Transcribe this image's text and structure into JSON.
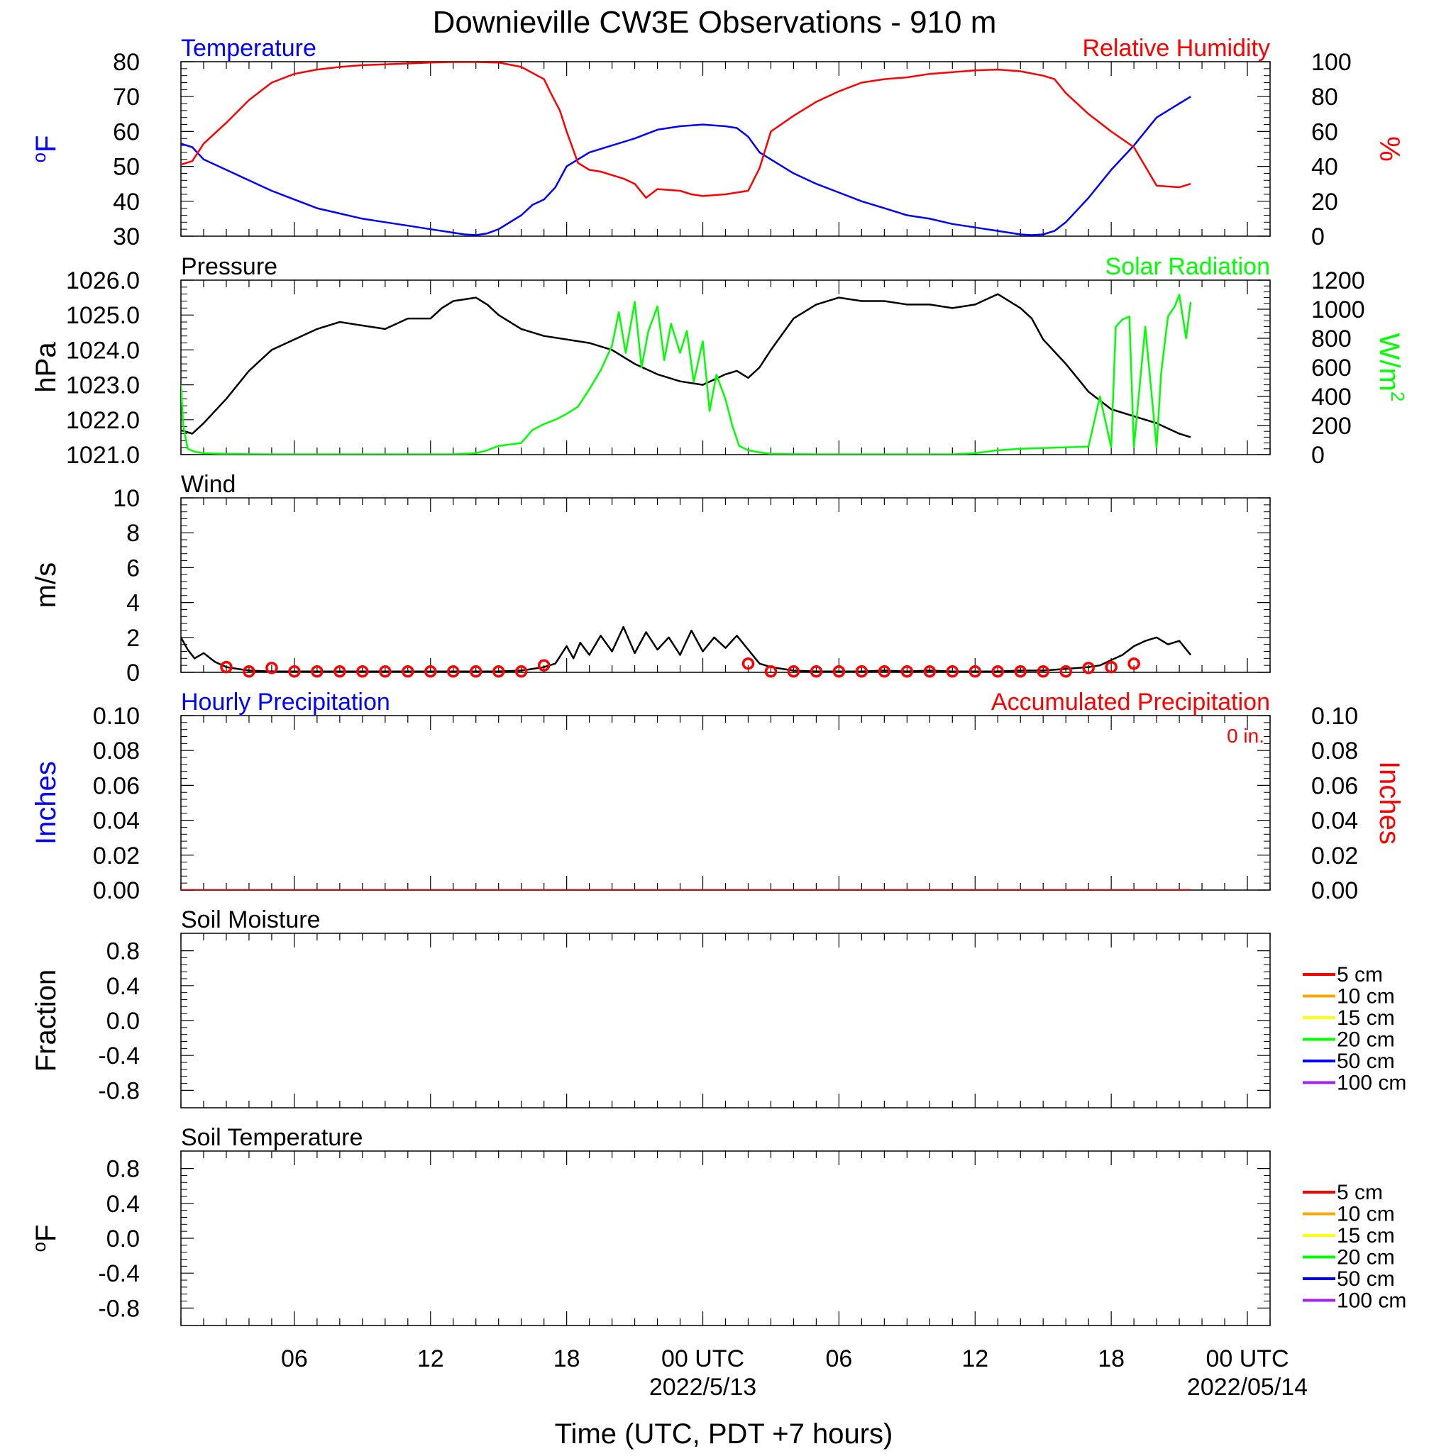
{
  "title": "Downieville CW3E Observations - 910 m",
  "colors": {
    "temperature": "#0000ff",
    "humidity": "#ff0000",
    "pressure": "#000000",
    "solar": "#00ff00",
    "wind": "#000000",
    "wind_barb": "#ff0000",
    "hourly_precip": "#0000ff",
    "accum_precip": "#ff0000",
    "soil_5": "#ff0000",
    "soil_10": "#ffa500",
    "soil_15": "#ffff00",
    "soil_20": "#00ff00",
    "soil_50": "#0000ff",
    "soil_100": "#a020f0"
  },
  "x_axis": {
    "label": "Time (UTC, PDT +7 hours)",
    "range_hours": [
      0,
      48
    ],
    "ticks": [
      {
        "hour": 5,
        "label": "06",
        "sublabel": ""
      },
      {
        "hour": 11,
        "label": "12",
        "sublabel": ""
      },
      {
        "hour": 17,
        "label": "18",
        "sublabel": ""
      },
      {
        "hour": 23,
        "label": "00 UTC",
        "sublabel": "2022/5/13"
      },
      {
        "hour": 29,
        "label": "06",
        "sublabel": ""
      },
      {
        "hour": 35,
        "label": "12",
        "sublabel": ""
      },
      {
        "hour": 41,
        "label": "18",
        "sublabel": ""
      },
      {
        "hour": 47,
        "label": "00 UTC",
        "sublabel": "2022/05/14"
      }
    ]
  },
  "chart_data": [
    {
      "type": "line",
      "panel": "temperature_humidity",
      "title_left": "Temperature",
      "title_right": "Relative Humidity",
      "ylabel_left": "oF",
      "ylabel_right": "%",
      "ylim_left": [
        30,
        80
      ],
      "ylim_right": [
        0,
        100
      ],
      "yticks_left": [
        30,
        40,
        50,
        60,
        70,
        80
      ],
      "yticks_right": [
        0,
        20,
        40,
        60,
        80,
        100
      ],
      "series": [
        {
          "name": "Temperature",
          "axis": "left",
          "x": [
            0,
            0.5,
            1,
            2,
            3,
            4,
            5,
            6,
            7,
            8,
            9,
            10,
            11,
            12,
            12.5,
            13,
            13.5,
            14,
            15,
            15.5,
            16,
            16.5,
            17,
            18,
            19,
            20,
            21,
            22,
            23,
            24,
            24.5,
            25,
            25.5,
            26,
            27,
            28,
            29,
            30,
            31,
            32,
            33,
            34,
            35,
            36,
            37,
            37.5,
            38,
            38.5,
            39,
            40,
            41,
            42,
            43,
            44,
            44.5
          ],
          "y": [
            56.5,
            55.5,
            52,
            49,
            46,
            43,
            40.5,
            38,
            36.5,
            35,
            34,
            33,
            32,
            31,
            30.5,
            30.3,
            30.8,
            32,
            36,
            39,
            40.5,
            44,
            50,
            54,
            56,
            58,
            60.5,
            61.5,
            62,
            61.5,
            61,
            58.5,
            54,
            52,
            48,
            45,
            42.5,
            40,
            38,
            36,
            35,
            33.5,
            32.5,
            31.5,
            30.5,
            30.3,
            30.5,
            31.5,
            34,
            41,
            49,
            56,
            64,
            68,
            70
          ]
        },
        {
          "name": "Relative Humidity",
          "axis": "right",
          "x": [
            0,
            0.5,
            1,
            2,
            3,
            4,
            5,
            6,
            7,
            8,
            9,
            10,
            11,
            12,
            13,
            14,
            15,
            16,
            16.3,
            16.7,
            17,
            17.5,
            18,
            18.5,
            19,
            19.5,
            20,
            20.5,
            21,
            22,
            22.5,
            23,
            24,
            25,
            25.5,
            26,
            27,
            28,
            29,
            30,
            31,
            32,
            33,
            34,
            35,
            36,
            37,
            38,
            38.5,
            39,
            40,
            41,
            42,
            42.5,
            43,
            44,
            44.5
          ],
          "y": [
            41,
            43,
            53,
            65,
            78,
            88,
            93,
            95.5,
            97,
            98,
            98.5,
            99,
            99.5,
            99.8,
            99.8,
            99.5,
            97,
            90,
            82,
            72,
            60,
            42,
            38,
            37,
            35,
            33,
            30,
            22,
            27,
            26,
            24,
            23,
            24,
            26,
            39,
            60,
            69,
            77,
            83,
            88,
            90,
            91,
            93,
            94,
            95,
            95.5,
            94.5,
            92,
            90,
            82,
            70,
            60,
            51,
            40,
            29,
            28,
            30
          ]
        }
      ]
    },
    {
      "type": "line",
      "panel": "pressure_solar",
      "title_left": "Pressure",
      "title_right": "Solar Radiation",
      "ylabel_left": "hPa",
      "ylabel_right": "W/m",
      "ylabel_right_sup": "2",
      "ylim_left": [
        1021,
        1026
      ],
      "ylim_right": [
        0,
        1200
      ],
      "yticks_left": [
        1021.0,
        1022.0,
        1023.0,
        1024.0,
        1025.0,
        1026.0
      ],
      "ytick_labels_left": [
        "1021.0",
        "1022.0",
        "1023.0",
        "1024.0",
        "1025.0",
        "1026.0"
      ],
      "yticks_right": [
        0,
        200,
        400,
        600,
        800,
        1000,
        1200
      ],
      "series": [
        {
          "name": "Pressure",
          "axis": "left",
          "x": [
            0,
            0.5,
            1,
            2,
            3,
            4,
            5,
            6,
            7,
            8,
            9,
            10,
            11,
            11.5,
            12,
            13,
            13.5,
            14,
            15,
            16,
            17,
            18,
            19,
            20,
            21,
            22,
            23,
            24,
            24.5,
            25,
            25.5,
            26,
            27,
            28,
            29,
            30,
            31,
            32,
            33,
            34,
            35,
            36,
            37,
            37.5,
            38,
            39,
            40,
            41,
            42,
            43,
            44,
            44.5
          ],
          "y": [
            1021.7,
            1021.6,
            1021.9,
            1022.6,
            1023.4,
            1024.0,
            1024.3,
            1024.6,
            1024.8,
            1024.7,
            1024.6,
            1024.9,
            1024.9,
            1025.2,
            1025.4,
            1025.5,
            1025.3,
            1025.0,
            1024.6,
            1024.4,
            1024.3,
            1024.2,
            1024.0,
            1023.6,
            1023.3,
            1023.1,
            1023.0,
            1023.3,
            1023.4,
            1023.2,
            1023.5,
            1024.0,
            1024.9,
            1025.3,
            1025.5,
            1025.4,
            1025.4,
            1025.3,
            1025.3,
            1025.2,
            1025.3,
            1025.6,
            1025.2,
            1024.9,
            1024.3,
            1023.6,
            1022.8,
            1022.3,
            1022.1,
            1021.9,
            1021.6,
            1021.5
          ]
        },
        {
          "name": "Solar Radiation",
          "axis": "right",
          "x": [
            0,
            0.1,
            0.3,
            0.6,
            1,
            2,
            3,
            4,
            5,
            6,
            7,
            8,
            9,
            10,
            11,
            12,
            13,
            13.5,
            14,
            15,
            15.5,
            16,
            16.5,
            17,
            17.5,
            18,
            18.5,
            19,
            19.3,
            19.6,
            20,
            20.3,
            20.6,
            21,
            21.3,
            21.6,
            22,
            22.3,
            22.6,
            23,
            23.3,
            23.6,
            24,
            24.3,
            24.6,
            25,
            25.5,
            26,
            27,
            28,
            29,
            30,
            31,
            32,
            33,
            34,
            35,
            36,
            37,
            38,
            39,
            40,
            40.5,
            41,
            41.2,
            41.5,
            41.8,
            42,
            42.5,
            43,
            43.2,
            43.5,
            43.8,
            44,
            44.3,
            44.5
          ],
          "y": [
            480,
            200,
            40,
            20,
            10,
            5,
            3,
            2,
            2,
            2,
            2,
            2,
            2,
            2,
            2,
            2,
            10,
            30,
            60,
            80,
            170,
            210,
            240,
            280,
            330,
            450,
            580,
            750,
            980,
            700,
            1050,
            600,
            850,
            1020,
            650,
            900,
            700,
            850,
            500,
            780,
            300,
            550,
            380,
            200,
            60,
            30,
            15,
            5,
            3,
            2,
            2,
            2,
            2,
            2,
            2,
            2,
            10,
            30,
            40,
            45,
            50,
            55,
            400,
            50,
            880,
            930,
            950,
            50,
            880,
            50,
            560,
            950,
            1020,
            1100,
            800,
            1050
          ]
        }
      ]
    },
    {
      "type": "line",
      "panel": "wind",
      "title_left": "Wind",
      "ylabel_left": "m/s",
      "ylim_left": [
        0,
        10
      ],
      "yticks_left": [
        0,
        2,
        4,
        6,
        8,
        10
      ],
      "series": [
        {
          "name": "Wind",
          "axis": "left",
          "x": [
            0,
            0.3,
            0.6,
            1,
            1.5,
            2,
            2.5,
            3,
            4,
            5,
            6,
            7,
            8,
            9,
            10,
            11,
            12,
            13,
            14,
            15,
            15.5,
            16,
            16.5,
            17,
            17.3,
            17.6,
            18,
            18.5,
            19,
            19.5,
            20,
            20.5,
            21,
            21.5,
            22,
            22.5,
            23,
            23.5,
            24,
            24.5,
            25,
            25.5,
            26,
            27,
            28,
            29,
            30,
            31,
            32,
            33,
            34,
            35,
            36,
            37,
            38,
            39,
            40,
            40.5,
            41,
            41.5,
            42,
            42.5,
            43,
            43.5,
            44,
            44.5
          ],
          "y": [
            2.0,
            1.3,
            0.8,
            1.1,
            0.6,
            0.3,
            0.2,
            0.1,
            0.05,
            0.05,
            0.05,
            0.05,
            0.05,
            0.05,
            0.05,
            0.05,
            0.05,
            0.05,
            0.05,
            0.1,
            0.2,
            0.3,
            0.5,
            1.5,
            0.8,
            1.7,
            1.0,
            2.1,
            1.2,
            2.6,
            1.1,
            2.3,
            1.3,
            2.0,
            1.0,
            2.4,
            1.2,
            2.0,
            1.4,
            2.1,
            1.3,
            0.5,
            0.3,
            0.1,
            0.05,
            0.05,
            0.05,
            0.1,
            0.05,
            0.1,
            0.05,
            0.05,
            0.05,
            0.1,
            0.1,
            0.2,
            0.3,
            0.4,
            0.7,
            1.0,
            1.5,
            1.8,
            2.0,
            1.6,
            1.8,
            1.0
          ]
        },
        {
          "name": "Wind gust markers",
          "axis": "left",
          "marker": "circle",
          "x": [
            2,
            3,
            4,
            5,
            6,
            7,
            8,
            9,
            10,
            11,
            12,
            13,
            14,
            15,
            16,
            25,
            26,
            27,
            28,
            29,
            30,
            31,
            32,
            33,
            34,
            35,
            36,
            37,
            38,
            39,
            40,
            41,
            42
          ],
          "y": [
            0.3,
            0.05,
            0.25,
            0.05,
            0.05,
            0.05,
            0.05,
            0.05,
            0.05,
            0.05,
            0.05,
            0.05,
            0.05,
            0.05,
            0.4,
            0.5,
            0.05,
            0.05,
            0.05,
            0.05,
            0.05,
            0.05,
            0.05,
            0.05,
            0.05,
            0.05,
            0.05,
            0.05,
            0.05,
            0.05,
            0.25,
            0.3,
            0.5
          ]
        }
      ]
    },
    {
      "type": "line",
      "panel": "precipitation",
      "title_left": "Hourly Precipitation",
      "title_right": "Accumulated Precipitation",
      "annotation_right": "0 in.",
      "ylabel_left": "Inches",
      "ylabel_right": "Inches",
      "ylim_left": [
        0,
        0.1
      ],
      "ylim_right": [
        0,
        0.1
      ],
      "yticks_left": [
        0.0,
        0.02,
        0.04,
        0.06,
        0.08,
        0.1
      ],
      "ytick_labels_left": [
        "0.00",
        "0.02",
        "0.04",
        "0.06",
        "0.08",
        "0.10"
      ],
      "yticks_right": [
        0.0,
        0.02,
        0.04,
        0.06,
        0.08,
        0.1
      ],
      "ytick_labels_right": [
        "0.00",
        "0.02",
        "0.04",
        "0.06",
        "0.08",
        "0.10"
      ],
      "series": [
        {
          "name": "Hourly Precipitation",
          "axis": "left",
          "x": [
            0,
            44.5
          ],
          "y": [
            0,
            0
          ]
        },
        {
          "name": "Accumulated Precipitation",
          "axis": "right",
          "x": [
            0,
            44.5
          ],
          "y": [
            0,
            0
          ]
        }
      ]
    },
    {
      "type": "line",
      "panel": "soil_moisture",
      "title_left": "Soil Moisture",
      "ylabel_left": "Fraction",
      "ylim_left": [
        -1,
        1
      ],
      "yticks_left": [
        -0.8,
        -0.4,
        0.0,
        0.4,
        0.8
      ],
      "ytick_labels_left": [
        "-0.8",
        "-0.4",
        "0.0",
        "0.4",
        "0.8"
      ],
      "legend": [
        "5 cm",
        "10 cm",
        "15 cm",
        "20 cm",
        "50 cm",
        "100 cm"
      ],
      "series": []
    },
    {
      "type": "line",
      "panel": "soil_temperature",
      "title_left": "Soil Temperature",
      "ylabel_left": "oF",
      "ylim_left": [
        -1,
        1
      ],
      "yticks_left": [
        -0.8,
        -0.4,
        0.0,
        0.4,
        0.8
      ],
      "ytick_labels_left": [
        "-0.8",
        "-0.4",
        "0.0",
        "0.4",
        "0.8"
      ],
      "legend": [
        "5 cm",
        "10 cm",
        "15 cm",
        "20 cm",
        "50 cm",
        "100 cm"
      ],
      "series": []
    }
  ]
}
